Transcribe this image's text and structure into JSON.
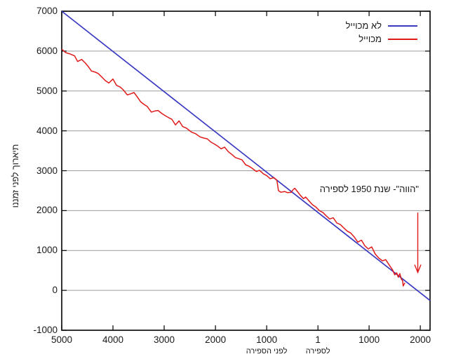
{
  "chart_data": {
    "type": "line",
    "title": "",
    "ylabel": "תיארוך לפני זמננו",
    "xlabel": "",
    "xlim": [
      -5000,
      2190
    ],
    "ylim": [
      -1000,
      7000
    ],
    "grid": "horizontal-only",
    "legend_position": "top-right-inside",
    "x_ticks": [
      {
        "year": -5000,
        "label": "5000"
      },
      {
        "year": -4000,
        "label": "4000"
      },
      {
        "year": -3000,
        "label": "3000"
      },
      {
        "year": -2000,
        "label": "2000"
      },
      {
        "year": -1000,
        "label": "1000"
      },
      {
        "year": 1,
        "label": "1"
      },
      {
        "year": 1000,
        "label": "1000"
      },
      {
        "year": 2000,
        "label": "2000"
      }
    ],
    "x_era_labels": [
      {
        "year": -1000,
        "label": "לפני הספירה"
      },
      {
        "year": 1,
        "label": "לספירה"
      }
    ],
    "y_ticks": [
      {
        "bp": 7000,
        "label": "7000"
      },
      {
        "bp": 6000,
        "label": "6000"
      },
      {
        "bp": 5000,
        "label": "5000"
      },
      {
        "bp": 4000,
        "label": "4000"
      },
      {
        "bp": 3000,
        "label": "3000"
      },
      {
        "bp": 2000,
        "label": "2000"
      },
      {
        "bp": 1000,
        "label": "1000"
      },
      {
        "bp": 0,
        "label": "0"
      },
      {
        "bp": -1000,
        "label": "-1000"
      }
    ],
    "y_gridlines": [
      0,
      1000,
      2000,
      3000,
      4000,
      5000,
      6000
    ],
    "series": [
      {
        "name": "לא מכוייל",
        "color": "#3a3ac0",
        "width": 1.7,
        "points": [
          [
            -5000,
            7000
          ],
          [
            2190,
            -255
          ]
        ]
      },
      {
        "name": "מכוייל",
        "color": "#e01a1a",
        "width": 1.5,
        "points": [
          [
            -5000,
            6050
          ],
          [
            -4920,
            5960
          ],
          [
            -4850,
            5935
          ],
          [
            -4750,
            5880
          ],
          [
            -4690,
            5740
          ],
          [
            -4610,
            5790
          ],
          [
            -4540,
            5700
          ],
          [
            -4480,
            5610
          ],
          [
            -4420,
            5500
          ],
          [
            -4360,
            5480
          ],
          [
            -4290,
            5440
          ],
          [
            -4210,
            5340
          ],
          [
            -4150,
            5260
          ],
          [
            -4080,
            5200
          ],
          [
            -4000,
            5300
          ],
          [
            -3930,
            5140
          ],
          [
            -3860,
            5100
          ],
          [
            -3800,
            5030
          ],
          [
            -3720,
            4900
          ],
          [
            -3650,
            4930
          ],
          [
            -3590,
            4960
          ],
          [
            -3520,
            4840
          ],
          [
            -3460,
            4730
          ],
          [
            -3390,
            4660
          ],
          [
            -3330,
            4610
          ],
          [
            -3250,
            4470
          ],
          [
            -3180,
            4500
          ],
          [
            -3120,
            4510
          ],
          [
            -3050,
            4440
          ],
          [
            -2980,
            4380
          ],
          [
            -2910,
            4330
          ],
          [
            -2850,
            4290
          ],
          [
            -2780,
            4150
          ],
          [
            -2710,
            4250
          ],
          [
            -2640,
            4110
          ],
          [
            -2570,
            4070
          ],
          [
            -2530,
            4030
          ],
          [
            -2470,
            3970
          ],
          [
            -2390,
            3930
          ],
          [
            -2300,
            3850
          ],
          [
            -2230,
            3820
          ],
          [
            -2160,
            3800
          ],
          [
            -2090,
            3720
          ],
          [
            -2020,
            3670
          ],
          [
            -1960,
            3620
          ],
          [
            -1890,
            3550
          ],
          [
            -1820,
            3590
          ],
          [
            -1750,
            3480
          ],
          [
            -1680,
            3410
          ],
          [
            -1610,
            3330
          ],
          [
            -1540,
            3300
          ],
          [
            -1480,
            3270
          ],
          [
            -1410,
            3150
          ],
          [
            -1340,
            3110
          ],
          [
            -1280,
            3060
          ],
          [
            -1200,
            2980
          ],
          [
            -1140,
            3010
          ],
          [
            -1060,
            2920
          ],
          [
            -1000,
            2880
          ],
          [
            -930,
            2800
          ],
          [
            -860,
            2830
          ],
          [
            -800,
            2760
          ],
          [
            -770,
            2500
          ],
          [
            -720,
            2460
          ],
          [
            -650,
            2480
          ],
          [
            -590,
            2450
          ],
          [
            -520,
            2460
          ],
          [
            -480,
            2530
          ],
          [
            -450,
            2560
          ],
          [
            -400,
            2480
          ],
          [
            -340,
            2380
          ],
          [
            -280,
            2300
          ],
          [
            -240,
            2340
          ],
          [
            -170,
            2240
          ],
          [
            -110,
            2150
          ],
          [
            -40,
            2090
          ],
          [
            30,
            2000
          ],
          [
            100,
            1950
          ],
          [
            170,
            1860
          ],
          [
            230,
            1790
          ],
          [
            300,
            1820
          ],
          [
            370,
            1690
          ],
          [
            440,
            1650
          ],
          [
            510,
            1560
          ],
          [
            580,
            1480
          ],
          [
            640,
            1440
          ],
          [
            710,
            1340
          ],
          [
            780,
            1210
          ],
          [
            850,
            1260
          ],
          [
            915,
            1120
          ],
          [
            985,
            1040
          ],
          [
            1050,
            1090
          ],
          [
            1120,
            910
          ],
          [
            1190,
            810
          ],
          [
            1260,
            740
          ],
          [
            1325,
            770
          ],
          [
            1395,
            630
          ],
          [
            1460,
            510
          ],
          [
            1500,
            390
          ],
          [
            1540,
            440
          ],
          [
            1570,
            330
          ],
          [
            1600,
            420
          ],
          [
            1630,
            280
          ],
          [
            1655,
            245
          ],
          [
            1665,
            110
          ],
          [
            1680,
            150
          ],
          [
            1700,
            190
          ]
        ]
      }
    ],
    "annotation": {
      "text": "\"הווה\"- שנת 1950 לספירה",
      "color": "#e01a1a",
      "arrow_year": 1950,
      "arrow_from_bp": 1950,
      "arrow_to_bp": 450
    }
  }
}
